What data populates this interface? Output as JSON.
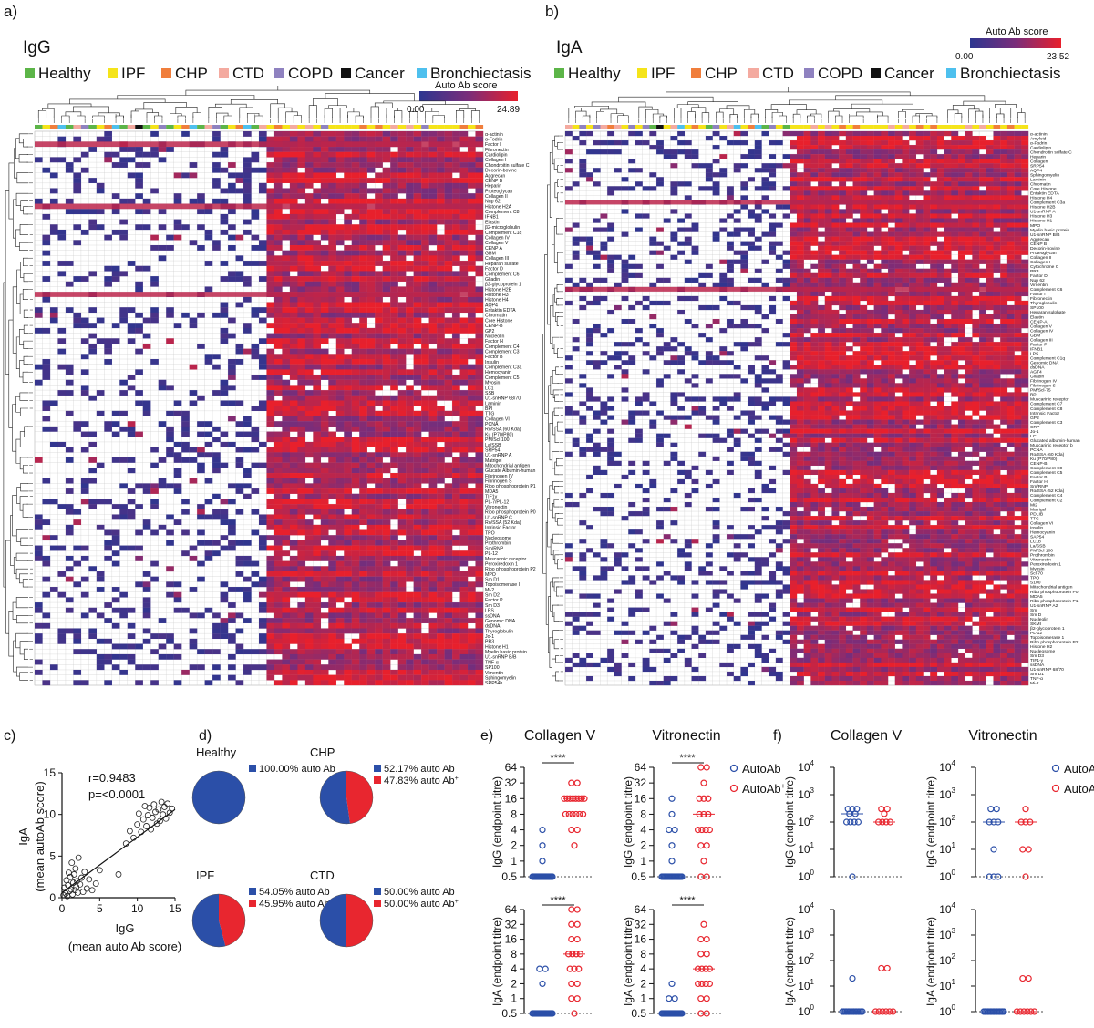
{
  "colors": {
    "auto_neg": "#2b4fa8",
    "auto_pos": "#e8262f",
    "heat_low": "#2d3690",
    "heat_mid": "#7a2d7a",
    "heat_high": "#e8202c",
    "groups": {
      "Healthy": "#5cb548",
      "IPF": "#f5e41a",
      "CHP": "#f07e3c",
      "CTD": "#f4aaa0",
      "COPD": "#8f82c0",
      "Cancer": "#111111",
      "Bronchiectasis": "#4ec0ee"
    }
  },
  "legend_groups": [
    "Healthy",
    "IPF",
    "CHP",
    "CTD",
    "COPD",
    "Cancer",
    "Bronchiectasis"
  ],
  "panel_a": {
    "letter": "a)",
    "title": "IgG",
    "scale_title": "Auto Ab score",
    "scale_min": "0.00",
    "scale_max": "24.89",
    "antigens": [
      "α-actinin",
      "α-Fodrin",
      "Factor I",
      "Fibronectin",
      "Cardiolipin",
      "Collagen I",
      "Chondroitin sulfate C",
      "Decorin-bovine",
      "Aggrecan",
      "CENP B",
      "Heparin",
      "Proteoglycan",
      "Collagen II",
      "Nup 62",
      "Histone H2A",
      "Complement C8",
      "IFNB1",
      "Elastin",
      "β2-microglobulin",
      "Complement C1q",
      "Collagen IV",
      "Collagen V",
      "CENP A",
      "GBM",
      "Collagen III",
      "Heparan sulfate",
      "Factor D",
      "Complement C6",
      "Gliadin",
      "β2-glycoprotein 1",
      "Histone H2B",
      "Histone H3",
      "Histone H4",
      "AQP4",
      "Entaktin EDTA",
      "Chromatin",
      "Core Histone",
      "CENP-B",
      "GP2",
      "Nucleolin",
      "Factor H",
      "Complement C4",
      "Complement C3",
      "Factor B",
      "Insulin",
      "Complement C3a",
      "Hemocyanin",
      "Complement C5",
      "Myosin",
      "LC1",
      "SSB",
      "U1-snRNP 68/70",
      "Laminin",
      "BPI",
      "TTG",
      "Collagen VI",
      "PCNA",
      "Ro/SSA (60 Kda)",
      "Ku (P70/P80)",
      "PM/Scl 100",
      "La/SSB",
      "SRP54",
      "U1-snRNP A",
      "Matrigel",
      "Mitochondrial antigen",
      "Glucate Albumin-human",
      "Fibrinogen IV",
      "Fibrinogen S",
      "Ribo phosphoprotein P1",
      "MDA5",
      "TIF1γ",
      "PL-7/PL-12",
      "Vitronectin",
      "Ribo phosphoprotein P0",
      "U1-snRNP C",
      "Ro/SSA (52 Kda)",
      "Intrinsic Factor",
      "TPO",
      "Nucleosome",
      "Prothrombin",
      "Sm/RNP",
      "PL-12",
      "Muscarinic receptor",
      "Peroxiredoxin 1",
      "Ribo phosphoprotein P2",
      "MPO",
      "Sm D1",
      "Topoisomerase I",
      "Mi-2",
      "Sm D2",
      "Factor P",
      "Sm D3",
      "LPS",
      "ssDNA",
      "Genomic DNA",
      "dsDNA",
      "Thyroglobulin",
      "Jo-1",
      "PR3",
      "Histone H1",
      "Myelin basic protein",
      "U1-snRNP B/B",
      "TNF-α",
      "SP100",
      "Vimentin",
      "Sphingomyelin",
      "SRP54b"
    ]
  },
  "panel_b": {
    "letter": "b)",
    "title": "IgA",
    "scale_title": "Auto Ab score",
    "scale_min": "0.00",
    "scale_max": "23.52",
    "antigens": [
      "α-actinin",
      "Amyloid",
      "α-Fodrin",
      "Cardiolipin",
      "Chondroitin sulfate C",
      "Heparin",
      "Collagen",
      "SRP54",
      "AQP4",
      "Sphingomyelin",
      "Laminin",
      "Chromatin",
      "Core Histone",
      "Entaktin EDTA",
      "Histone H4",
      "Complement C3a",
      "Histone H2B",
      "U1-snRNP A",
      "Histone H3",
      "Histone H1",
      "MPO",
      "Myelin basic protein",
      "U1-snRNP B/B",
      "Aggrecan",
      "CENP B",
      "Decorin-bovine",
      "Proteoglycan",
      "Collagen II",
      "Collagen I",
      "Cytochrome C",
      "PR3",
      "Factor D",
      "Nup 62",
      "Vimentin",
      "Complement C6",
      "Factor I",
      "Fibronectin",
      "Thyroglobulin",
      "SP100",
      "Heparan sulphate",
      "Elastin",
      "CENP-A",
      "Collagen V",
      "Collagen IV",
      "GBM",
      "Collagen III",
      "Factor P",
      "IFNB1",
      "LPS",
      "Complement C1q",
      "Genomic DNA",
      "dsDNA",
      "AGT4",
      "Gliadin",
      "Fibrinogen IV",
      "Fibrinogen S",
      "PM/Scl-75",
      "BPI",
      "Muscarinic receptor",
      "Complement C7",
      "Complement C8",
      "Intrinsic Factor",
      "GP2",
      "Complement C3",
      "CRP",
      "Jo-1",
      "LC1",
      "Glucated albumin-human",
      "Muscarinic receptor b",
      "PCNA",
      "Ro/SSA (60 Kda)",
      "Ku (P70/P80)",
      "CENP-B",
      "Complement C9",
      "Complement C5",
      "Factor B",
      "Factor H",
      "Sm/RNP",
      "Ro/SSA (52 Kda)",
      "Complement C4",
      "Complement C2",
      "Mi2",
      "Matrigel",
      "PDLIB",
      "TTG",
      "Collagen VI",
      "Insulin",
      "Hemocyanin",
      "SAP54",
      "LC1b",
      "La/SSB",
      "PM/Scl 100",
      "Prothrombin",
      "Vitronectin",
      "Peroxiredoxin 1",
      "Myosin",
      "Scl-70",
      "TPO",
      "S100",
      "Mitochondrial antigen",
      "Ribo phosphoprotein P0",
      "MDA5",
      "Ribo phosphoprotein P1",
      "U1-snRNP A2",
      "Sm",
      "Sm D",
      "Nucleolin",
      "SKMI",
      "β2-glycoprotein 1",
      "PL-12",
      "Topoisomerase 1",
      "Ribo phosphoprotein P2",
      "Histone H2",
      "Nucleosome",
      "Sm D3",
      "TIF1-γ",
      "ssDNA",
      "U1-snRNP 68/70",
      "Sm D1",
      "TNF-α",
      "Mi-2"
    ]
  },
  "panel_c": {
    "letter": "c)",
    "stat_r": "r=0.9483",
    "stat_p": "p=<0.0001",
    "ylabel_1": "IgA",
    "ylabel_2": "(mean autoAb score)",
    "xlabel_1": "IgG",
    "xlabel_2": "(mean auto Ab score)",
    "x_ticks": [
      "0",
      "5",
      "10",
      "15"
    ],
    "y_ticks": [
      "0",
      "5",
      "10",
      "15"
    ]
  },
  "panel_d": {
    "letter": "d)",
    "sup_neg": "−",
    "sup_pos": "+",
    "pies": [
      {
        "title": "Healthy",
        "neg_text": "100.00% auto Ab",
        "pos_text": ""
      },
      {
        "title": "CHP",
        "neg_text": "52.17% auto Ab",
        "pos_text": "47.83% auto Ab"
      },
      {
        "title": "IPF",
        "neg_text": "54.05% auto Ab",
        "pos_text": "45.95% auto Ab"
      },
      {
        "title": "CTD",
        "neg_text": "50.00% auto Ab",
        "pos_text": "50.00% auto Ab"
      }
    ]
  },
  "panel_e": {
    "letter": "e)",
    "col_titles": [
      "Collagen V",
      "Vitronectin"
    ],
    "row_ylabels": [
      "IgG (endpoint titre)",
      "IgA (endpoint titre)"
    ],
    "y_ticks": [
      "64",
      "32",
      "16",
      "8",
      "4",
      "2",
      "1",
      "0.5"
    ],
    "sig": "****",
    "legend_neg": "AutoAb",
    "legend_pos": "AutoAb"
  },
  "panel_f": {
    "letter": "f)",
    "col_titles": [
      "Collagen V",
      "Vitronectin"
    ],
    "row_ylabels": [
      "IgG (endpoint titre)",
      "IgA (endpoint titre)"
    ],
    "y_base": "10",
    "y_exps": [
      "4",
      "3",
      "2",
      "1",
      "0"
    ],
    "legend_neg": "AutoAb",
    "legend_pos": "AutoAb"
  },
  "chart_data": [
    {
      "type": "heatmap",
      "title": "IgG",
      "rows": "panel_a.antigens",
      "value_range": [
        0,
        24.89
      ],
      "colorbar_label": "Auto Ab score"
    },
    {
      "type": "heatmap",
      "title": "IgA",
      "rows": "panel_b.antigens",
      "value_range": [
        0,
        23.52
      ],
      "colorbar_label": "Auto Ab score"
    },
    {
      "type": "scatter",
      "xlabel": "IgG (mean auto Ab score)",
      "ylabel": "IgA (mean autoAb score)",
      "xlim": [
        0,
        15
      ],
      "ylim": [
        0,
        15
      ],
      "annotation": [
        "r=0.9483",
        "p=<0.0001"
      ],
      "regression": [
        [
          0,
          0.6
        ],
        [
          15,
          10.6
        ]
      ],
      "points": [
        [
          0.2,
          0.3
        ],
        [
          0.3,
          1.2
        ],
        [
          0.5,
          0.5
        ],
        [
          0.6,
          2.1
        ],
        [
          0.7,
          0.2
        ],
        [
          0.8,
          1.5
        ],
        [
          0.9,
          3.0
        ],
        [
          1.0,
          0.8
        ],
        [
          1.1,
          2.5
        ],
        [
          1.2,
          1.0
        ],
        [
          1.3,
          4.2
        ],
        [
          1.4,
          0.4
        ],
        [
          1.5,
          1.8
        ],
        [
          1.6,
          2.8
        ],
        [
          1.7,
          0.9
        ],
        [
          1.8,
          3.5
        ],
        [
          1.9,
          1.3
        ],
        [
          2.0,
          2.0
        ],
        [
          2.1,
          0.6
        ],
        [
          2.2,
          4.8
        ],
        [
          2.4,
          1.6
        ],
        [
          2.6,
          2.4
        ],
        [
          2.8,
          0.7
        ],
        [
          3.0,
          3.1
        ],
        [
          3.3,
          1.1
        ],
        [
          3.6,
          2.2
        ],
        [
          4.0,
          0.9
        ],
        [
          4.5,
          1.7
        ],
        [
          5.0,
          3.3
        ],
        [
          7.5,
          2.8
        ],
        [
          8.5,
          6.5
        ],
        [
          9.0,
          8.0
        ],
        [
          9.5,
          7.2
        ],
        [
          10.0,
          8.8
        ],
        [
          10.2,
          10.1
        ],
        [
          10.5,
          7.9
        ],
        [
          10.8,
          9.4
        ],
        [
          11.0,
          11.0
        ],
        [
          11.2,
          8.6
        ],
        [
          11.4,
          9.9
        ],
        [
          11.6,
          10.8
        ],
        [
          11.8,
          8.2
        ],
        [
          12.0,
          9.6
        ],
        [
          12.2,
          11.2
        ],
        [
          12.4,
          10.3
        ],
        [
          12.6,
          8.9
        ],
        [
          12.8,
          10.6
        ],
        [
          13.0,
          9.2
        ],
        [
          13.2,
          11.5
        ],
        [
          13.4,
          10.0
        ],
        [
          13.6,
          10.9
        ],
        [
          13.8,
          9.5
        ],
        [
          14.0,
          11.3
        ],
        [
          14.3,
          10.2
        ],
        [
          14.6,
          10.7
        ]
      ]
    },
    {
      "type": "pie",
      "series": [
        {
          "name": "Healthy",
          "values": [
            100.0,
            0.0
          ]
        },
        {
          "name": "CHP",
          "values": [
            52.17,
            47.83
          ]
        },
        {
          "name": "IPF",
          "values": [
            54.05,
            45.95
          ]
        },
        {
          "name": "CTD",
          "values": [
            50.0,
            50.0
          ]
        }
      ],
      "categories": [
        "auto Ab−",
        "auto Ab+"
      ]
    },
    {
      "type": "scatter",
      "panel": "e",
      "y_scale": "log2",
      "ylim": [
        0.5,
        64
      ],
      "categories": [
        "AutoAb−",
        "AutoAb+"
      ],
      "subplots": [
        {
          "antigen": "Collagen V",
          "isotype": "IgG",
          "neg": [
            0.5,
            0.5,
            0.5,
            0.5,
            0.5,
            0.5,
            0.5,
            0.5,
            0.5,
            0.5,
            0.5,
            0.5,
            0.5,
            0.5,
            0.5,
            0.5,
            0.5,
            0.5,
            0.5,
            0.5,
            0.5,
            0.5,
            1,
            2,
            4
          ],
          "pos": [
            2,
            4,
            4,
            8,
            8,
            8,
            8,
            8,
            8,
            16,
            16,
            16,
            16,
            16,
            16,
            16,
            16,
            32,
            32
          ]
        },
        {
          "antigen": "Vitronectin",
          "isotype": "IgG",
          "neg": [
            0.5,
            0.5,
            0.5,
            0.5,
            0.5,
            0.5,
            0.5,
            0.5,
            0.5,
            0.5,
            0.5,
            0.5,
            0.5,
            0.5,
            0.5,
            0.5,
            0.5,
            0.5,
            0.5,
            0.5,
            1,
            2,
            4,
            4,
            8,
            16
          ],
          "pos": [
            0.5,
            0.5,
            1,
            2,
            2,
            4,
            4,
            4,
            4,
            8,
            8,
            8,
            16,
            16,
            16,
            32,
            64,
            64
          ]
        },
        {
          "antigen": "Collagen V",
          "isotype": "IgA",
          "neg": [
            0.5,
            0.5,
            0.5,
            0.5,
            0.5,
            0.5,
            0.5,
            0.5,
            0.5,
            0.5,
            0.5,
            0.5,
            0.5,
            0.5,
            0.5,
            0.5,
            0.5,
            0.5,
            0.5,
            0.5,
            0.5,
            0.5,
            2,
            4,
            4
          ],
          "pos": [
            0.5,
            1,
            1,
            2,
            2,
            4,
            4,
            4,
            8,
            8,
            8,
            8,
            16,
            16,
            32,
            32,
            64,
            64
          ]
        },
        {
          "antigen": "Vitronectin",
          "isotype": "IgA",
          "neg": [
            0.5,
            0.5,
            0.5,
            0.5,
            0.5,
            0.5,
            0.5,
            0.5,
            0.5,
            0.5,
            0.5,
            0.5,
            0.5,
            0.5,
            0.5,
            0.5,
            0.5,
            0.5,
            0.5,
            0.5,
            0.5,
            0.5,
            1,
            1,
            2
          ],
          "pos": [
            0.5,
            0.5,
            1,
            1,
            2,
            2,
            2,
            2,
            4,
            4,
            4,
            4,
            8,
            8,
            16,
            16,
            32
          ]
        }
      ]
    },
    {
      "type": "scatter",
      "panel": "f",
      "y_scale": "log10",
      "ylim": [
        1,
        10000
      ],
      "categories": [
        "AutoAb−",
        "AutoAb+"
      ],
      "subplots": [
        {
          "antigen": "Collagen V",
          "isotype": "IgG",
          "neg": [
            1,
            100,
            100,
            100,
            100,
            200,
            200,
            300,
            300,
            300
          ],
          "pos": [
            100,
            100,
            100,
            100,
            200,
            300,
            300
          ]
        },
        {
          "antigen": "Vitronectin",
          "isotype": "IgG",
          "neg": [
            1,
            1,
            1,
            10,
            100,
            100,
            100,
            300,
            300
          ],
          "pos": [
            1,
            10,
            10,
            100,
            100,
            100,
            300
          ]
        },
        {
          "antigen": "Collagen V",
          "isotype": "IgA",
          "neg": [
            1,
            1,
            1,
            1,
            1,
            1,
            1,
            1,
            1,
            1,
            1,
            1,
            1,
            1,
            1,
            20
          ],
          "pos": [
            1,
            1,
            1,
            1,
            1,
            1,
            50,
            50
          ]
        },
        {
          "antigen": "Vitronectin",
          "isotype": "IgA",
          "neg": [
            1,
            1,
            1,
            1,
            1,
            1,
            1,
            1,
            1,
            1,
            1,
            1,
            1,
            1,
            1,
            1
          ],
          "pos": [
            1,
            1,
            1,
            1,
            1,
            1,
            20,
            20
          ]
        }
      ]
    }
  ]
}
